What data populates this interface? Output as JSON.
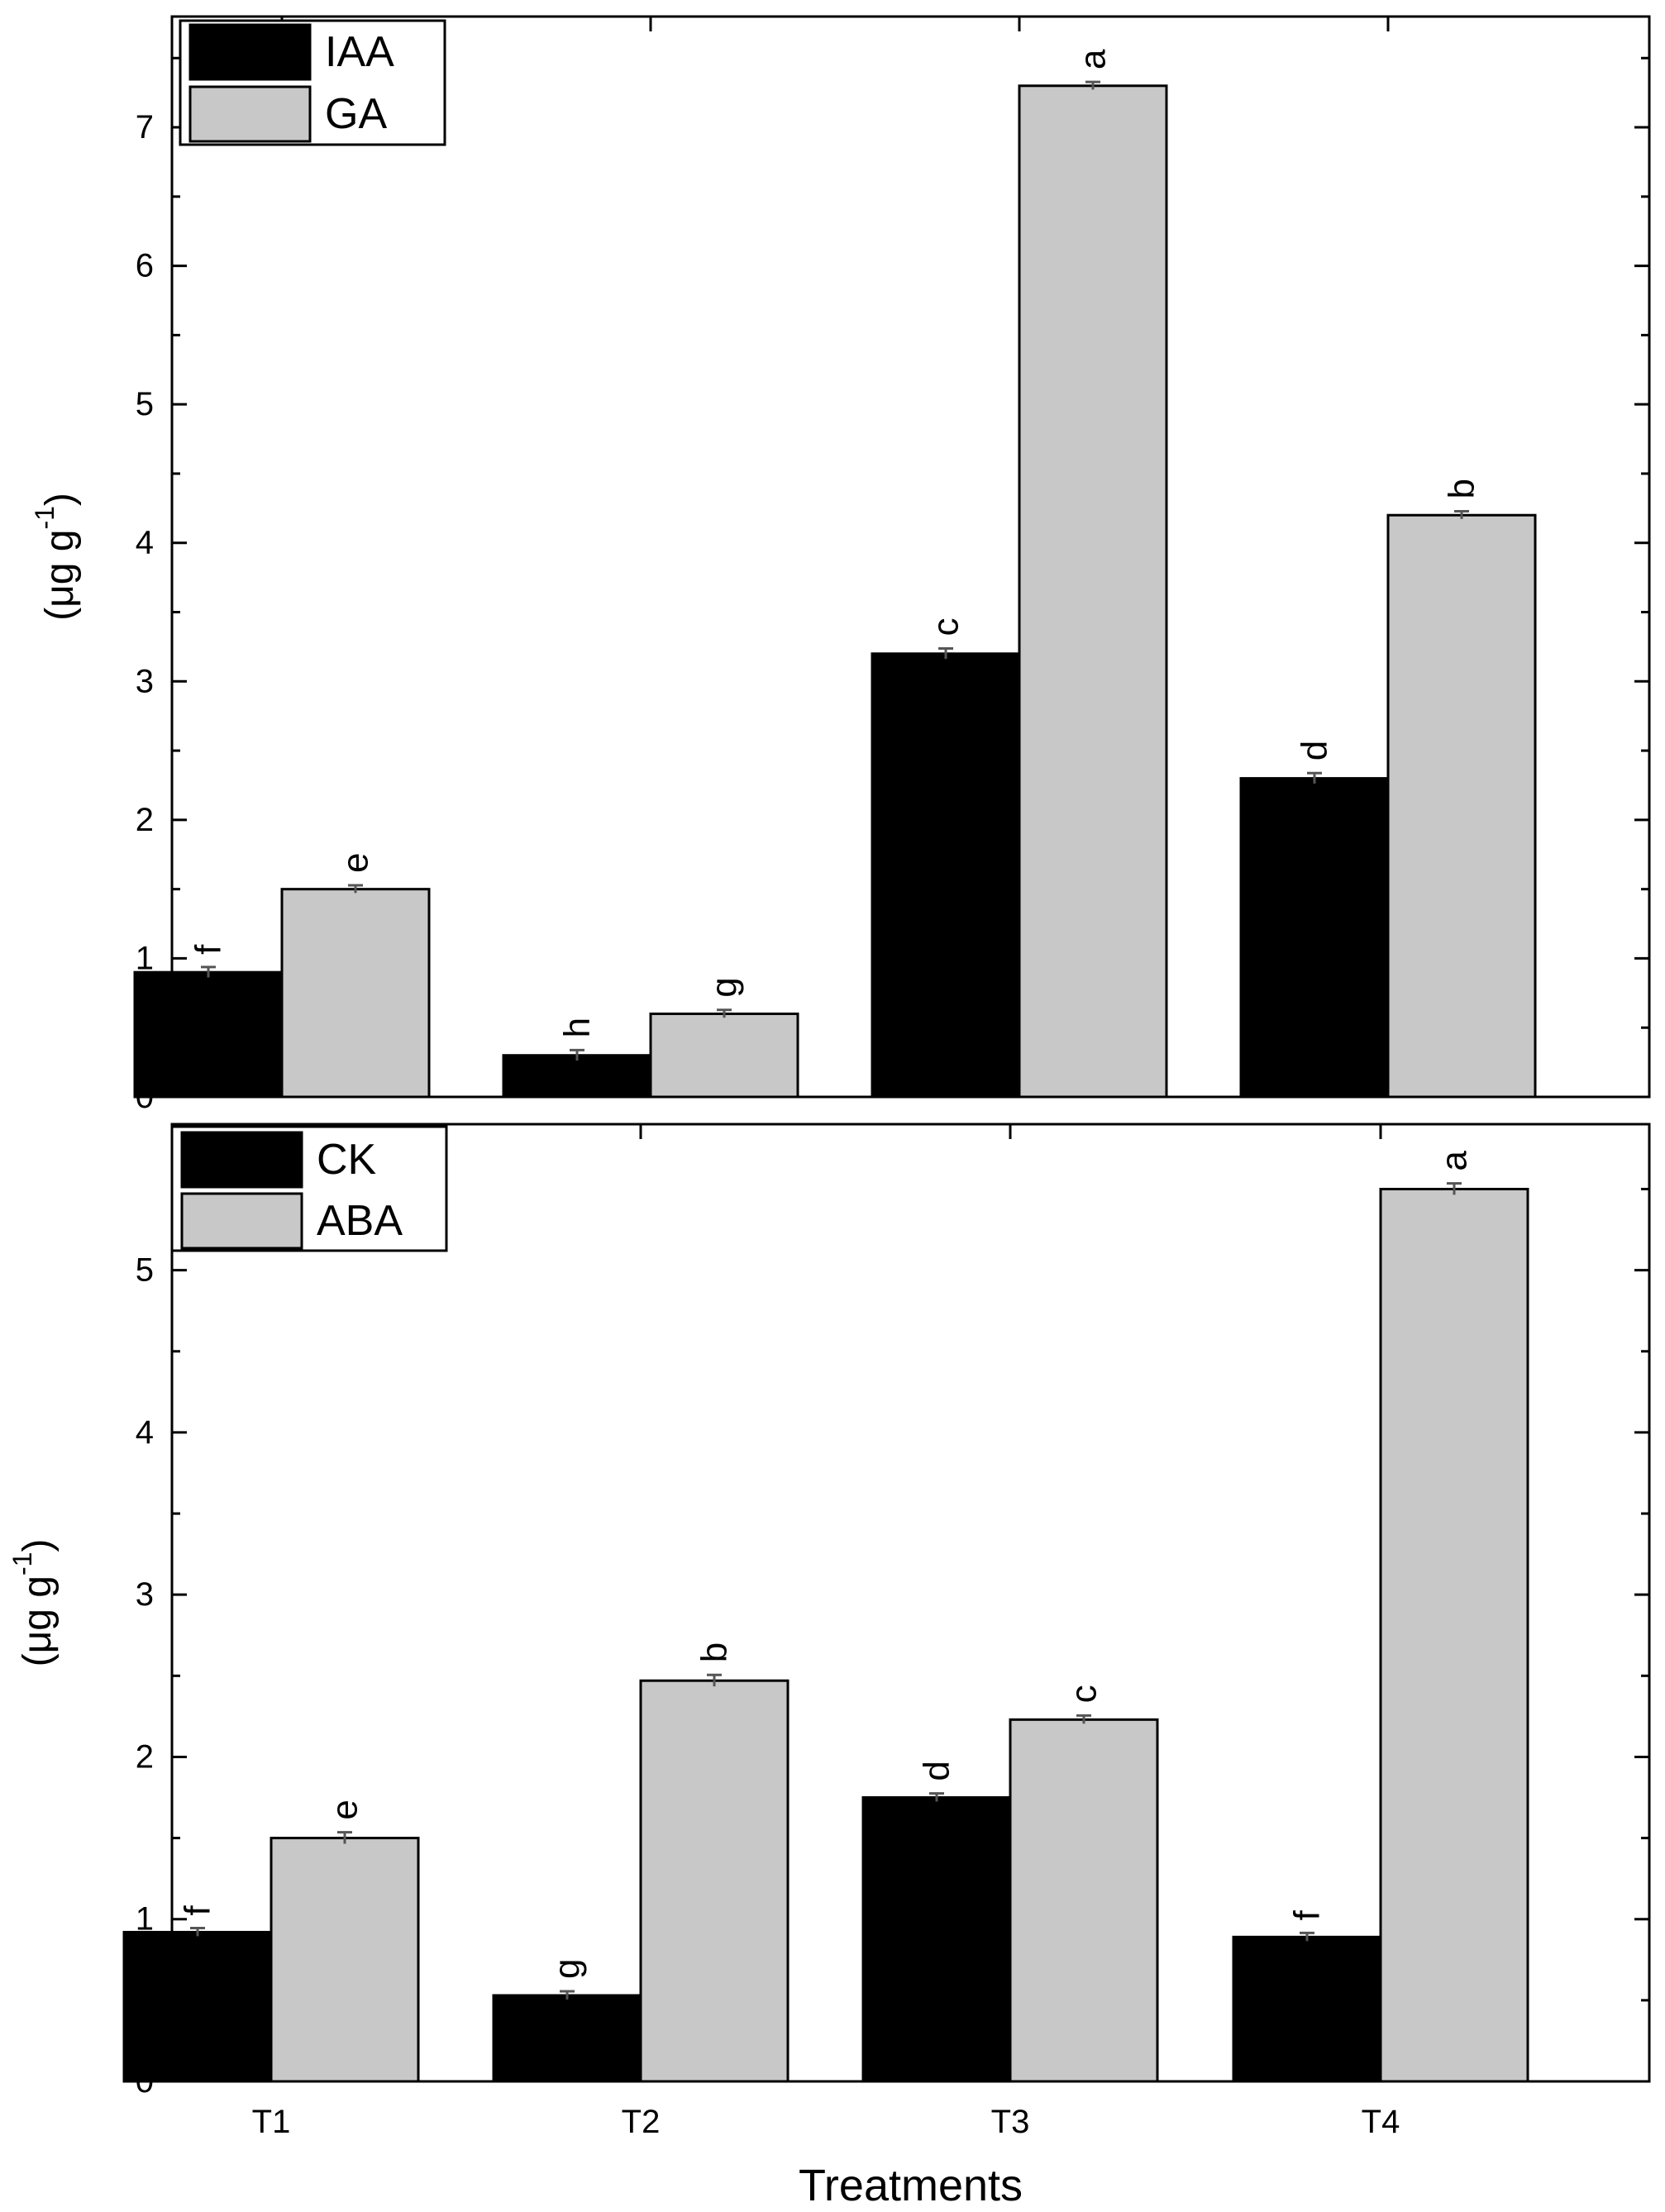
{
  "chart_data": [
    {
      "type": "bar",
      "categories": [
        "T1",
        "T2",
        "T3",
        "T4"
      ],
      "series": [
        {
          "name": "IAA",
          "values": [
            0.9,
            0.3,
            3.2,
            2.3
          ],
          "errors": [
            0.02,
            0.02,
            0.02,
            0.02
          ],
          "labels": [
            "f",
            "h",
            "c",
            "d"
          ],
          "color": "#000000"
        },
        {
          "name": "GA",
          "values": [
            1.5,
            0.6,
            7.3,
            4.2
          ],
          "errors": [
            0.01,
            0.01,
            0.01,
            0.01
          ],
          "labels": [
            "e",
            "g",
            "a",
            "b"
          ],
          "color": "#c8c8c8"
        }
      ],
      "ylabel": "(μg g",
      "ylabel_sup": "-1",
      "ylabel_tail": ")",
      "ylim": [
        0,
        7.8
      ],
      "yticks": [
        "0",
        "1",
        "2",
        "3",
        "4",
        "5",
        "6",
        "7"
      ],
      "xlabel": "",
      "show_xticks": false,
      "legend": "top-left",
      "grid": false
    },
    {
      "type": "bar",
      "categories": [
        "T1",
        "T2",
        "T3",
        "T4"
      ],
      "series": [
        {
          "name": "CK",
          "values": [
            0.92,
            0.53,
            1.75,
            0.89
          ],
          "errors": [
            0.01,
            0.01,
            0.01,
            0.01
          ],
          "labels": [
            "f",
            "g",
            "d",
            "f"
          ],
          "color": "#000000"
        },
        {
          "name": "ABA",
          "values": [
            1.5,
            2.47,
            2.23,
            5.5
          ],
          "errors": [
            0.02,
            0.02,
            0.01,
            0.02
          ],
          "labels": [
            "e",
            "b",
            "c",
            "a"
          ],
          "color": "#c8c8c8"
        }
      ],
      "ylabel": "(μg g",
      "ylabel_sup": "-1",
      "ylabel_tail": ")",
      "ylim": [
        0,
        5.9
      ],
      "yticks": [
        "0",
        "1",
        "2",
        "3",
        "4",
        "5"
      ],
      "xlabel": "Treatments",
      "show_xticks": true,
      "legend": "top-left",
      "grid": false
    }
  ]
}
